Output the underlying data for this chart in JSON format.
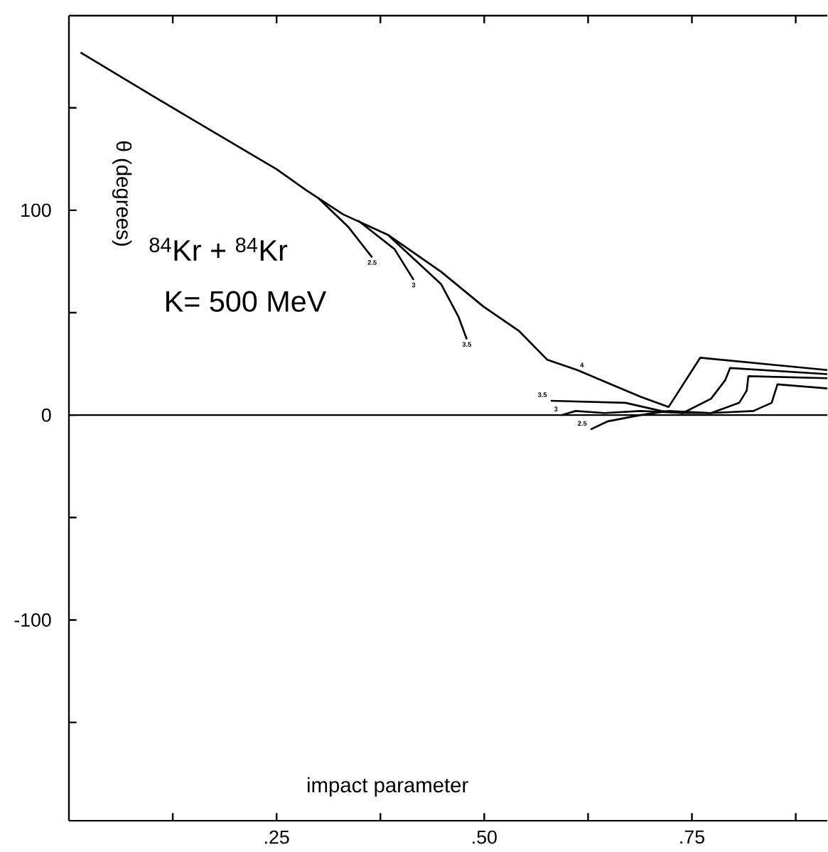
{
  "chart_data": {
    "type": "line",
    "xlabel": "impact parameter",
    "ylabel": "θ (degrees)",
    "annotations": [
      "$^{84}$Kr + $^{84}$Kr",
      "K= 500 MeV"
    ],
    "xlim": [
      0,
      0.913
    ],
    "ylim": [
      -198,
      195
    ],
    "xticks": [
      {
        "value": 0.125,
        "label": null
      },
      {
        "value": 0.25,
        "label": ".25"
      },
      {
        "value": 0.375,
        "label": null
      },
      {
        "value": 0.5,
        "label": ".50"
      },
      {
        "value": 0.625,
        "label": null
      },
      {
        "value": 0.75,
        "label": ".75"
      },
      {
        "value": 0.875,
        "label": null
      }
    ],
    "yticks": [
      {
        "value": -150,
        "label": null
      },
      -100,
      {
        "value": -50,
        "label": null
      },
      0,
      {
        "value": 50,
        "label": null
      },
      100,
      {
        "value": 150,
        "label": null
      }
    ],
    "ref_lines": [
      {
        "axis": "y",
        "value": 0
      }
    ],
    "marker": "none",
    "line_style": "solid",
    "series": [
      {
        "name": "2.5",
        "color": "#000000",
        "x": [
          0.3,
          0.336,
          0.365,
          0.5,
          0.628,
          0.649,
          0.688,
          0.722,
          0.773,
          0.824,
          0.846,
          0.853,
          0.913
        ],
        "values": [
          106,
          92,
          77,
          null,
          -7,
          -3,
          0,
          2,
          1,
          2,
          6,
          15,
          13
        ]
      },
      {
        "name": "3",
        "color": "#000000",
        "x": [
          0.348,
          0.392,
          0.415,
          0.5,
          0.593,
          0.61,
          0.645,
          0.688,
          0.739,
          0.773,
          0.807,
          0.816,
          0.818,
          0.913
        ],
        "values": [
          95,
          81,
          66,
          null,
          0,
          2,
          1,
          2,
          1,
          1,
          6,
          12,
          19,
          18
        ]
      },
      {
        "name": "3.5",
        "color": "#000000",
        "x": [
          0.384,
          0.448,
          0.469,
          0.479,
          0.53,
          0.58,
          0.67,
          0.713,
          0.739,
          0.773,
          0.79,
          0.796,
          0.913
        ],
        "values": [
          88,
          64,
          48,
          37,
          null,
          7,
          6,
          2,
          1,
          8,
          17,
          23,
          20
        ]
      },
      {
        "name": "4",
        "color": "#000000",
        "x": [
          0.014,
          0.1,
          0.2,
          0.25,
          0.285,
          0.33,
          0.384,
          0.448,
          0.499,
          0.542,
          0.576,
          0.612,
          0.653,
          0.688,
          0.722,
          0.76,
          0.913
        ],
        "values": [
          177,
          156,
          132,
          120,
          110,
          98,
          88,
          70,
          53,
          41,
          27,
          22,
          15,
          9,
          4,
          28,
          22
        ]
      }
    ]
  }
}
